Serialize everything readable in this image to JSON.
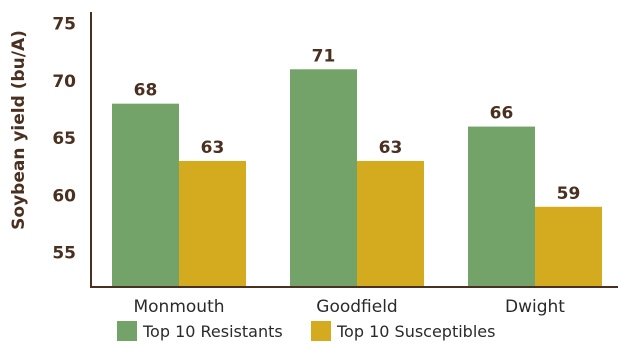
{
  "chart_data": {
    "type": "bar",
    "title": "",
    "xlabel": "",
    "ylabel": "Soybean yield (bu/A)",
    "categories": [
      "Monmouth",
      "Goodfield",
      "Dwight"
    ],
    "series": [
      {
        "name": "Top 10 Resistants",
        "values": [
          68,
          71,
          66
        ],
        "color": "#74a36a"
      },
      {
        "name": "Top 10 Susceptibles",
        "values": [
          63,
          63,
          59
        ],
        "color": "#d4aa1f"
      }
    ],
    "ylim": [
      52,
      76
    ],
    "yticks": [
      55,
      60,
      65,
      70,
      75
    ],
    "grid": false,
    "legend": "bottom",
    "data_labels": true
  }
}
